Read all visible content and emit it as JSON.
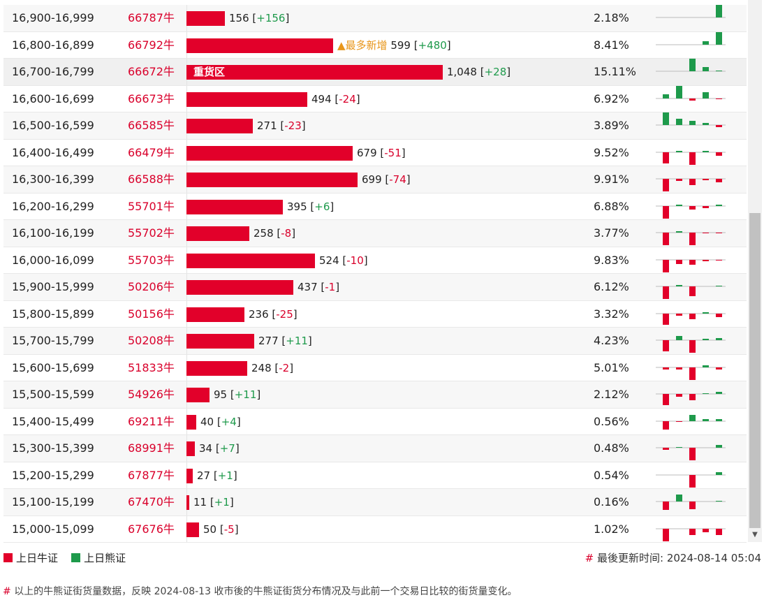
{
  "rows": [
    {
      "range": "16,900-16,999",
      "code": "66787牛",
      "count": "156",
      "change": "+156",
      "dir": "pos",
      "pct": "2.18%",
      "value": 156,
      "badge": "",
      "label": "",
      "bull": [
        0,
        0,
        0,
        0,
        0
      ],
      "bear": [
        0,
        0,
        0,
        0,
        19
      ]
    },
    {
      "range": "16,800-16,899",
      "code": "66792牛",
      "count": "599",
      "change": "+480",
      "dir": "pos",
      "pct": "8.41%",
      "value": 599,
      "badge": "▲最多新增",
      "label": "",
      "bull": [
        0,
        0,
        0,
        0,
        0
      ],
      "bear": [
        0,
        0,
        0,
        5,
        19
      ]
    },
    {
      "range": "16,700-16,799",
      "code": "66672牛",
      "count": "1,048",
      "change": "+28",
      "dir": "pos",
      "pct": "15.11%",
      "value": 1048,
      "badge": "",
      "label": "重货区",
      "bull": [
        0,
        0,
        0,
        0,
        0
      ],
      "bear": [
        0,
        0,
        19,
        6,
        1
      ]
    },
    {
      "range": "16,600-16,699",
      "code": "66673牛",
      "count": "494",
      "change": "-24",
      "dir": "neg",
      "pct": "6.92%",
      "value": 494,
      "badge": "",
      "label": "",
      "bull": [
        0,
        0,
        3,
        0,
        1
      ],
      "bear": [
        6,
        19,
        0,
        9,
        0
      ]
    },
    {
      "range": "16,500-16,599",
      "code": "66585牛",
      "count": "271",
      "change": "-23",
      "dir": "neg",
      "pct": "3.89%",
      "value": 271,
      "badge": "",
      "label": "",
      "bull": [
        0,
        0,
        0,
        0,
        3
      ],
      "bear": [
        19,
        9,
        6,
        3,
        0
      ]
    },
    {
      "range": "16,400-16,499",
      "code": "66479牛",
      "count": "679",
      "change": "-51",
      "dir": "neg",
      "pct": "9.52%",
      "value": 679,
      "badge": "",
      "label": "",
      "bull": [
        16,
        0,
        18,
        0,
        5
      ],
      "bear": [
        0,
        2,
        0,
        2,
        0
      ]
    },
    {
      "range": "16,300-16,399",
      "code": "66588牛",
      "count": "699",
      "change": "-74",
      "dir": "neg",
      "pct": "9.91%",
      "value": 699,
      "badge": "",
      "label": "",
      "bull": [
        18,
        3,
        9,
        2,
        5
      ],
      "bear": [
        0,
        0,
        0,
        0,
        0
      ]
    },
    {
      "range": "16,200-16,299",
      "code": "55701牛",
      "count": "395",
      "change": "+6",
      "dir": "pos",
      "pct": "6.88%",
      "value": 395,
      "badge": "",
      "label": "",
      "bull": [
        18,
        0,
        5,
        3,
        0
      ],
      "bear": [
        0,
        2,
        0,
        0,
        2
      ]
    },
    {
      "range": "16,100-16,199",
      "code": "55702牛",
      "count": "258",
      "change": "-8",
      "dir": "neg",
      "pct": "3.77%",
      "value": 258,
      "badge": "",
      "label": "",
      "bull": [
        18,
        0,
        18,
        1,
        1
      ],
      "bear": [
        0,
        2,
        0,
        0,
        0
      ]
    },
    {
      "range": "16,000-16,099",
      "code": "55703牛",
      "count": "524",
      "change": "-10",
      "dir": "neg",
      "pct": "9.83%",
      "value": 524,
      "badge": "",
      "label": "",
      "bull": [
        18,
        6,
        7,
        2,
        1
      ],
      "bear": [
        0,
        0,
        0,
        0,
        0
      ]
    },
    {
      "range": "15,900-15,999",
      "code": "50206牛",
      "count": "437",
      "change": "-1",
      "dir": "neg",
      "pct": "6.12%",
      "value": 437,
      "badge": "",
      "label": "",
      "bull": [
        18,
        0,
        14,
        0,
        0
      ],
      "bear": [
        0,
        2,
        0,
        0,
        1
      ]
    },
    {
      "range": "15,800-15,899",
      "code": "50156牛",
      "count": "236",
      "change": "-25",
      "dir": "neg",
      "pct": "3.32%",
      "value": 236,
      "badge": "",
      "label": "",
      "bull": [
        16,
        3,
        8,
        0,
        5
      ],
      "bear": [
        0,
        0,
        0,
        2,
        0
      ]
    },
    {
      "range": "15,700-15,799",
      "code": "50208牛",
      "count": "277",
      "change": "+11",
      "dir": "pos",
      "pct": "4.23%",
      "value": 277,
      "badge": "",
      "label": "",
      "bull": [
        16,
        0,
        18,
        0,
        0
      ],
      "bear": [
        0,
        6,
        0,
        2,
        3
      ]
    },
    {
      "range": "15,600-15,699",
      "code": "51833牛",
      "count": "248",
      "change": "-2",
      "dir": "neg",
      "pct": "5.01%",
      "value": 248,
      "badge": "",
      "label": "",
      "bull": [
        3,
        3,
        18,
        0,
        3
      ],
      "bear": [
        0,
        0,
        0,
        3,
        0
      ]
    },
    {
      "range": "15,500-15,599",
      "code": "54926牛",
      "count": "95",
      "change": "+11",
      "dir": "pos",
      "pct": "2.12%",
      "value": 95,
      "badge": "",
      "label": "",
      "bull": [
        16,
        4,
        9,
        0,
        0
      ],
      "bear": [
        0,
        0,
        0,
        1,
        3
      ]
    },
    {
      "range": "15,400-15,499",
      "code": "69211牛",
      "count": "40",
      "change": "+4",
      "dir": "pos",
      "pct": "0.56%",
      "value": 40,
      "badge": "",
      "label": "",
      "bull": [
        12,
        1,
        0,
        0,
        0
      ],
      "bear": [
        0,
        0,
        9,
        3,
        3
      ]
    },
    {
      "range": "15,300-15,399",
      "code": "68991牛",
      "count": "34",
      "change": "+7",
      "dir": "pos",
      "pct": "0.48%",
      "value": 34,
      "badge": "",
      "label": "",
      "bull": [
        3,
        0,
        18,
        0,
        0
      ],
      "bear": [
        0,
        1,
        0,
        0,
        4
      ]
    },
    {
      "range": "15,200-15,299",
      "code": "67877牛",
      "count": "27",
      "change": "+1",
      "dir": "pos",
      "pct": "0.54%",
      "value": 27,
      "badge": "",
      "label": "",
      "bull": [
        0,
        0,
        18,
        0,
        0
      ],
      "bear": [
        0,
        0,
        0,
        0,
        4
      ]
    },
    {
      "range": "15,100-15,199",
      "code": "67470牛",
      "count": "11",
      "change": "+1",
      "dir": "pos",
      "pct": "0.16%",
      "value": 11,
      "badge": "",
      "label": "",
      "bull": [
        12,
        0,
        11,
        0,
        0
      ],
      "bear": [
        0,
        10,
        0,
        0,
        1
      ]
    },
    {
      "range": "15,000-15,099",
      "code": "67676牛",
      "count": "50",
      "change": "-5",
      "dir": "neg",
      "pct": "1.02%",
      "value": 50,
      "badge": "",
      "label": "",
      "bull": [
        18,
        0,
        9,
        5,
        9
      ],
      "bear": [
        0,
        0,
        0,
        0,
        0
      ]
    }
  ],
  "legend": {
    "bull_label": "上日牛证",
    "bear_label": "上日熊证"
  },
  "footer": {
    "hash": "#",
    "updated": "最後更新时间: 2024-08-14 05:04",
    "note": "以上的牛熊证街货量数据，反映 2024-08-13 收市後的牛熊证街货分布情况及与此前一个交易日比较的街货量变化。"
  },
  "colors": {
    "bull": "#e2002a",
    "bear": "#1e9a4b",
    "accent": "#e8961a"
  },
  "scrollbar": {
    "down_icon": "▼"
  }
}
